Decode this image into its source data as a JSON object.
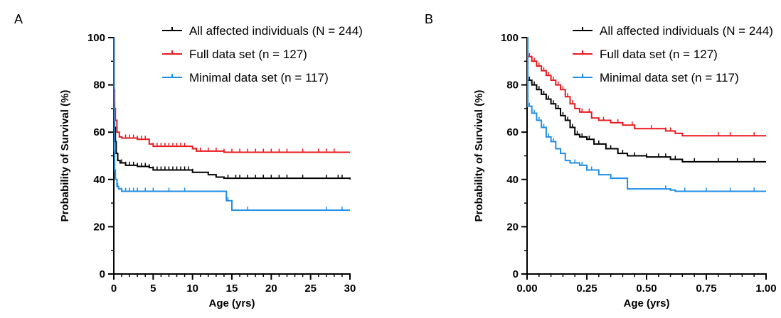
{
  "colors": {
    "all": "#000000",
    "full": "#e8191e",
    "minimal": "#1f8ee6"
  },
  "chart_data": [
    {
      "type": "line",
      "step": true,
      "panel_label": "A",
      "xlabel": "Age (yrs)",
      "ylabel": "Probability of Survival (%)",
      "xlim": [
        0,
        30
      ],
      "ylim": [
        0,
        100
      ],
      "x_ticks": [
        0,
        5,
        10,
        15,
        20,
        25,
        30
      ],
      "x_tick_labels": [
        "0",
        "5",
        "10",
        "15",
        "20",
        "25",
        "30"
      ],
      "x_minor_step": 1,
      "y_ticks": [
        0,
        20,
        40,
        60,
        80,
        100
      ],
      "y_tick_labels": [
        "0",
        "20",
        "40",
        "60",
        "80",
        "100"
      ],
      "y_minor_step": 10,
      "legend_position": "top-right",
      "series": [
        {
          "key": "all",
          "name": "All affected individuals (N = 244)",
          "points": [
            [
              0,
              100
            ],
            [
              0.05,
              72
            ],
            [
              0.1,
              62
            ],
            [
              0.2,
              56
            ],
            [
              0.3,
              51
            ],
            [
              0.5,
              48
            ],
            [
              0.8,
              47
            ],
            [
              1.5,
              46
            ],
            [
              3,
              45.5
            ],
            [
              4.5,
              45
            ],
            [
              5,
              44
            ],
            [
              7,
              44
            ],
            [
              10,
              43
            ],
            [
              12,
              42
            ],
            [
              13,
              41
            ],
            [
              14,
              40.5
            ],
            [
              30,
              40
            ]
          ],
          "censor": [
            1,
            1.5,
            2,
            2.5,
            3,
            3.5,
            4,
            4.5,
            5,
            5.5,
            6,
            6.5,
            7,
            7.5,
            8,
            8.5,
            9,
            9.5,
            10,
            14.5,
            15.5,
            16,
            17,
            18,
            19,
            20,
            21,
            22,
            24,
            27,
            28.5,
            29
          ]
        },
        {
          "key": "full",
          "name": "Full data set (n = 127)",
          "points": [
            [
              0,
              100
            ],
            [
              0.05,
              78
            ],
            [
              0.1,
              70
            ],
            [
              0.2,
              65
            ],
            [
              0.4,
              60
            ],
            [
              0.7,
              58
            ],
            [
              1,
              57.5
            ],
            [
              3,
              57
            ],
            [
              4.5,
              55
            ],
            [
              5,
              54
            ],
            [
              10,
              53
            ],
            [
              10.5,
              52
            ],
            [
              14,
              51.5
            ],
            [
              30,
              51.5
            ]
          ],
          "censor": [
            1.5,
            2,
            2.5,
            3,
            3.5,
            4,
            5,
            5.5,
            6,
            6.5,
            7,
            7.5,
            8,
            8.5,
            9,
            10.5,
            11,
            12,
            13,
            14,
            15,
            16,
            17,
            18,
            19,
            20,
            21,
            22,
            24,
            26,
            27,
            28
          ]
        },
        {
          "key": "minimal",
          "name": "Minimal data set (n = 117)",
          "points": [
            [
              0,
              100
            ],
            [
              0.03,
              70
            ],
            [
              0.06,
              52
            ],
            [
              0.1,
              44
            ],
            [
              0.2,
              40
            ],
            [
              0.4,
              37
            ],
            [
              0.6,
              36
            ],
            [
              1,
              35
            ],
            [
              14,
              35
            ],
            [
              14.3,
              31
            ],
            [
              15,
              27
            ],
            [
              30,
              27
            ]
          ],
          "censor": [
            0.5,
            1,
            1.5,
            2,
            2.5,
            3,
            4,
            5,
            7,
            9,
            14.5,
            17,
            27,
            29
          ]
        }
      ]
    },
    {
      "type": "line",
      "step": true,
      "panel_label": "B",
      "xlabel": "Age (yrs)",
      "ylabel": "Probability of Survival (%)",
      "xlim": [
        0,
        1
      ],
      "ylim": [
        0,
        100
      ],
      "x_ticks": [
        0,
        0.25,
        0.5,
        0.75,
        1
      ],
      "x_tick_labels": [
        "0.00",
        "0.25",
        "0.50",
        "0.75",
        "1.00"
      ],
      "x_minor_step": 0.05,
      "y_ticks": [
        0,
        20,
        40,
        60,
        80,
        100
      ],
      "y_tick_labels": [
        "0",
        "20",
        "40",
        "60",
        "80",
        "100"
      ],
      "y_minor_step": 10,
      "legend_position": "top-right",
      "series": [
        {
          "key": "all",
          "name": "All affected individuals (N = 244)",
          "points": [
            [
              0,
              100
            ],
            [
              0.003,
              82
            ],
            [
              0.02,
              80
            ],
            [
              0.04,
              78
            ],
            [
              0.06,
              76
            ],
            [
              0.08,
              74
            ],
            [
              0.1,
              72
            ],
            [
              0.12,
              70
            ],
            [
              0.14,
              67
            ],
            [
              0.16,
              65
            ],
            [
              0.18,
              62
            ],
            [
              0.2,
              59
            ],
            [
              0.22,
              58
            ],
            [
              0.25,
              57
            ],
            [
              0.28,
              55
            ],
            [
              0.33,
              53
            ],
            [
              0.38,
              51
            ],
            [
              0.42,
              50
            ],
            [
              0.5,
              49.5
            ],
            [
              0.6,
              48.5
            ],
            [
              0.65,
              47.5
            ],
            [
              1,
              47.5
            ]
          ],
          "censor": [
            0.01,
            0.02,
            0.03,
            0.04,
            0.05,
            0.06,
            0.07,
            0.08,
            0.09,
            0.1,
            0.11,
            0.13,
            0.15,
            0.17,
            0.19,
            0.21,
            0.23,
            0.26,
            0.3,
            0.35,
            0.4,
            0.45,
            0.5,
            0.55,
            0.58,
            0.62,
            0.7,
            0.8,
            0.88,
            0.95
          ]
        },
        {
          "key": "full",
          "name": "Full data set (n = 127)",
          "points": [
            [
              0,
              100
            ],
            [
              0.003,
              92
            ],
            [
              0.02,
              90
            ],
            [
              0.04,
              88
            ],
            [
              0.06,
              86
            ],
            [
              0.08,
              84
            ],
            [
              0.1,
              82
            ],
            [
              0.12,
              80
            ],
            [
              0.14,
              78
            ],
            [
              0.16,
              75
            ],
            [
              0.18,
              72
            ],
            [
              0.2,
              70
            ],
            [
              0.22,
              68.5
            ],
            [
              0.27,
              66
            ],
            [
              0.3,
              65
            ],
            [
              0.35,
              64
            ],
            [
              0.4,
              63
            ],
            [
              0.45,
              61.5
            ],
            [
              0.58,
              60.5
            ],
            [
              0.62,
              59.5
            ],
            [
              0.65,
              58.5
            ],
            [
              1,
              58.5
            ]
          ],
          "censor": [
            0.01,
            0.02,
            0.03,
            0.05,
            0.07,
            0.09,
            0.11,
            0.13,
            0.15,
            0.17,
            0.19,
            0.23,
            0.26,
            0.32,
            0.38,
            0.44,
            0.52,
            0.58,
            0.6,
            0.8,
            0.85,
            0.95
          ]
        },
        {
          "key": "minimal",
          "name": "Minimal data set (n = 117)",
          "points": [
            [
              0,
              100
            ],
            [
              0.003,
              71
            ],
            [
              0.02,
              68
            ],
            [
              0.04,
              65
            ],
            [
              0.06,
              62
            ],
            [
              0.08,
              58
            ],
            [
              0.1,
              56
            ],
            [
              0.12,
              53
            ],
            [
              0.14,
              51
            ],
            [
              0.16,
              48
            ],
            [
              0.18,
              47
            ],
            [
              0.22,
              46
            ],
            [
              0.25,
              44
            ],
            [
              0.3,
              42
            ],
            [
              0.35,
              40.5
            ],
            [
              0.42,
              36
            ],
            [
              0.6,
              35.5
            ],
            [
              0.62,
              35
            ],
            [
              1,
              35
            ]
          ],
          "censor": [
            0.01,
            0.02,
            0.03,
            0.05,
            0.07,
            0.09,
            0.11,
            0.2,
            0.23,
            0.27,
            0.58,
            0.66,
            0.75,
            0.85,
            0.95
          ]
        }
      ]
    }
  ]
}
